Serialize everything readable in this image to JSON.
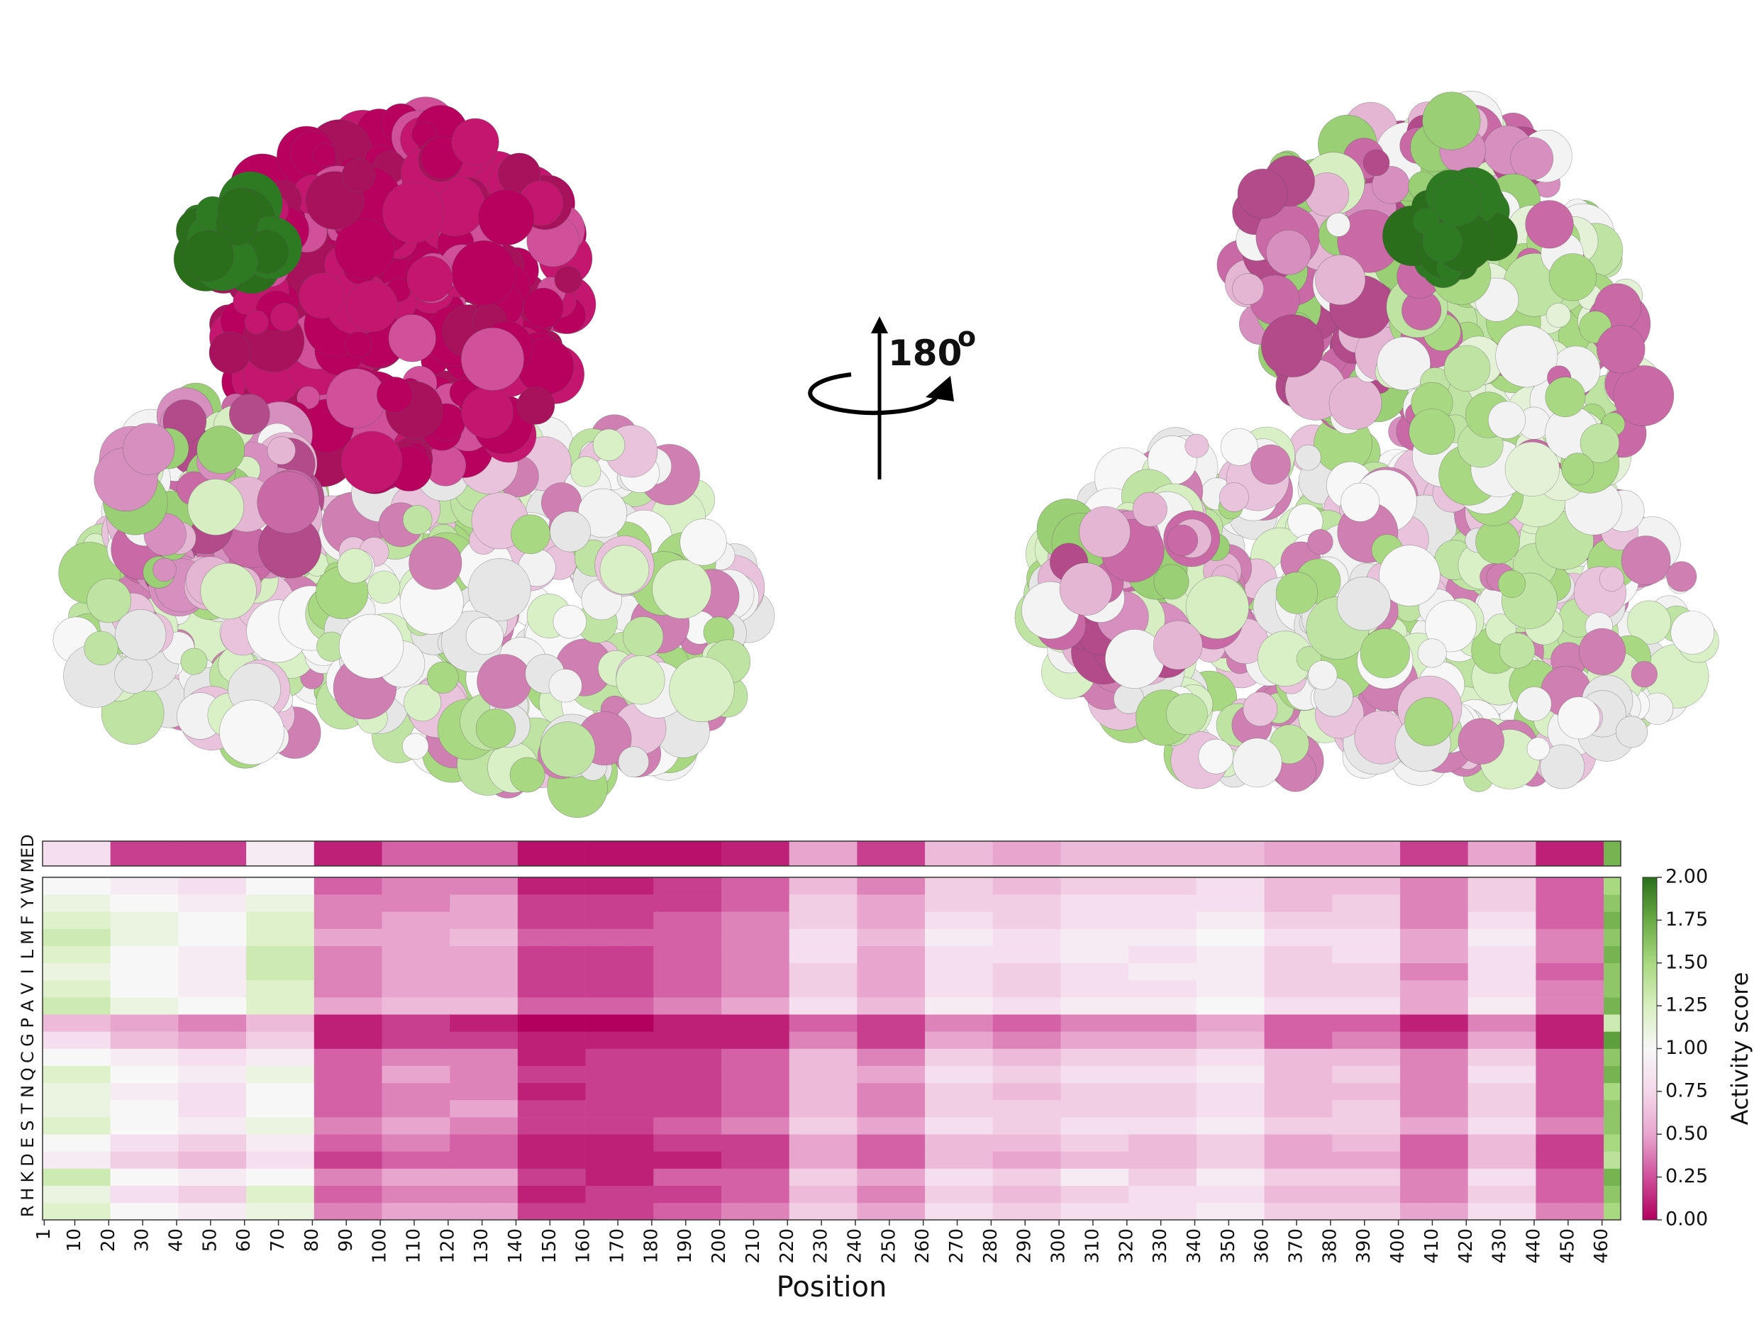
{
  "chart_data": {
    "type": "heatmap",
    "xlabel": "Position",
    "colorbar_label": "Activity score",
    "summary_label": "MED",
    "rows": [
      "R",
      "H",
      "K",
      "D",
      "E",
      "S",
      "T",
      "N",
      "Q",
      "C",
      "G",
      "P",
      "A",
      "V",
      "I",
      "L",
      "M",
      "F",
      "Y",
      "W"
    ],
    "x_bins": [
      0.5,
      20.5,
      40.5,
      60.5,
      80.5,
      100.5,
      120.5,
      140.5,
      160.5,
      180.5,
      200.5,
      220.5,
      240.5,
      260.5,
      280.5,
      300.5,
      320.5,
      340.5,
      360.5,
      380.5,
      400.5,
      420.5,
      440.5,
      460.5,
      465.5
    ],
    "summary_values": [
      0.8,
      0.2,
      0.2,
      0.9,
      0.1,
      0.3,
      0.3,
      0.05,
      0.05,
      0.05,
      0.1,
      0.5,
      0.2,
      0.6,
      0.5,
      0.6,
      0.6,
      0.6,
      0.5,
      0.5,
      0.2,
      0.5,
      0.1,
      1.7
    ],
    "values": [
      [
        1.2,
        1.0,
        0.9,
        1.1,
        0.4,
        0.5,
        0.5,
        0.2,
        0.2,
        0.3,
        0.4,
        0.7,
        0.5,
        0.8,
        0.7,
        0.8,
        0.8,
        0.9,
        0.7,
        0.7,
        0.5,
        0.8,
        0.4,
        1.5
      ],
      [
        1.1,
        0.8,
        0.7,
        1.2,
        0.3,
        0.4,
        0.4,
        0.1,
        0.2,
        0.2,
        0.3,
        0.6,
        0.4,
        0.7,
        0.6,
        0.7,
        0.8,
        0.8,
        0.6,
        0.6,
        0.4,
        0.7,
        0.3,
        1.6
      ],
      [
        1.3,
        1.0,
        0.9,
        1.0,
        0.4,
        0.5,
        0.5,
        0.2,
        0.1,
        0.3,
        0.3,
        0.7,
        0.5,
        0.8,
        0.7,
        0.9,
        0.7,
        0.9,
        0.7,
        0.7,
        0.4,
        0.8,
        0.3,
        1.7
      ],
      [
        0.9,
        0.7,
        0.6,
        0.8,
        0.2,
        0.3,
        0.3,
        0.1,
        0.1,
        0.1,
        0.2,
        0.5,
        0.3,
        0.6,
        0.5,
        0.6,
        0.6,
        0.7,
        0.5,
        0.5,
        0.3,
        0.6,
        0.2,
        1.4
      ],
      [
        1.0,
        0.8,
        0.7,
        0.9,
        0.3,
        0.4,
        0.3,
        0.1,
        0.1,
        0.2,
        0.2,
        0.5,
        0.3,
        0.6,
        0.6,
        0.7,
        0.6,
        0.7,
        0.5,
        0.6,
        0.3,
        0.6,
        0.2,
        1.5
      ],
      [
        1.2,
        1.0,
        0.9,
        1.1,
        0.4,
        0.5,
        0.4,
        0.2,
        0.2,
        0.3,
        0.4,
        0.7,
        0.5,
        0.8,
        0.7,
        0.8,
        0.8,
        0.9,
        0.7,
        0.7,
        0.5,
        0.8,
        0.4,
        1.6
      ],
      [
        1.1,
        1.0,
        0.8,
        1.0,
        0.3,
        0.4,
        0.5,
        0.2,
        0.2,
        0.2,
        0.3,
        0.6,
        0.4,
        0.7,
        0.7,
        0.7,
        0.7,
        0.8,
        0.6,
        0.7,
        0.4,
        0.7,
        0.3,
        1.6
      ],
      [
        1.1,
        0.9,
        0.8,
        1.0,
        0.3,
        0.4,
        0.4,
        0.1,
        0.2,
        0.2,
        0.3,
        0.6,
        0.4,
        0.7,
        0.6,
        0.7,
        0.7,
        0.8,
        0.6,
        0.6,
        0.4,
        0.7,
        0.3,
        1.5
      ],
      [
        1.2,
        1.0,
        0.9,
        1.1,
        0.3,
        0.5,
        0.4,
        0.2,
        0.2,
        0.2,
        0.3,
        0.6,
        0.5,
        0.8,
        0.7,
        0.8,
        0.8,
        0.9,
        0.6,
        0.7,
        0.4,
        0.8,
        0.3,
        1.7
      ],
      [
        1.0,
        0.9,
        0.8,
        0.9,
        0.3,
        0.4,
        0.4,
        0.1,
        0.2,
        0.2,
        0.3,
        0.6,
        0.4,
        0.7,
        0.6,
        0.7,
        0.7,
        0.8,
        0.6,
        0.6,
        0.4,
        0.7,
        0.3,
        1.6
      ],
      [
        0.8,
        0.6,
        0.5,
        0.7,
        0.1,
        0.2,
        0.2,
        0.1,
        0.1,
        0.1,
        0.1,
        0.4,
        0.2,
        0.5,
        0.4,
        0.5,
        0.5,
        0.6,
        0.3,
        0.4,
        0.2,
        0.5,
        0.1,
        1.8
      ],
      [
        0.6,
        0.5,
        0.4,
        0.6,
        0.1,
        0.2,
        0.1,
        0.0,
        0.0,
        0.1,
        0.1,
        0.3,
        0.2,
        0.4,
        0.3,
        0.4,
        0.4,
        0.5,
        0.3,
        0.3,
        0.1,
        0.4,
        0.1,
        1.3
      ],
      [
        1.3,
        1.1,
        1.0,
        1.2,
        0.5,
        0.6,
        0.6,
        0.3,
        0.3,
        0.4,
        0.5,
        0.8,
        0.6,
        0.9,
        0.8,
        0.9,
        0.9,
        1.0,
        0.8,
        0.8,
        0.5,
        0.9,
        0.4,
        1.7
      ],
      [
        1.2,
        1.0,
        0.9,
        1.2,
        0.4,
        0.5,
        0.5,
        0.2,
        0.2,
        0.3,
        0.4,
        0.7,
        0.5,
        0.8,
        0.7,
        0.8,
        0.8,
        0.9,
        0.7,
        0.7,
        0.5,
        0.8,
        0.4,
        1.6
      ],
      [
        1.1,
        1.0,
        0.9,
        1.3,
        0.4,
        0.5,
        0.5,
        0.2,
        0.2,
        0.3,
        0.4,
        0.7,
        0.5,
        0.8,
        0.7,
        0.8,
        0.9,
        0.9,
        0.7,
        0.7,
        0.4,
        0.8,
        0.3,
        1.6
      ],
      [
        1.2,
        1.0,
        0.9,
        1.3,
        0.4,
        0.5,
        0.5,
        0.2,
        0.2,
        0.3,
        0.4,
        0.8,
        0.5,
        0.8,
        0.8,
        0.9,
        0.8,
        0.9,
        0.7,
        0.8,
        0.5,
        0.8,
        0.4,
        1.7
      ],
      [
        1.3,
        1.1,
        1.0,
        1.2,
        0.5,
        0.5,
        0.6,
        0.3,
        0.3,
        0.3,
        0.4,
        0.8,
        0.6,
        0.9,
        0.8,
        0.9,
        0.9,
        1.0,
        0.8,
        0.8,
        0.5,
        0.9,
        0.4,
        1.6
      ],
      [
        1.2,
        1.1,
        1.0,
        1.2,
        0.4,
        0.5,
        0.5,
        0.2,
        0.2,
        0.3,
        0.4,
        0.7,
        0.5,
        0.8,
        0.7,
        0.8,
        0.8,
        0.9,
        0.7,
        0.7,
        0.4,
        0.8,
        0.3,
        1.7
      ],
      [
        1.1,
        1.0,
        0.9,
        1.1,
        0.4,
        0.4,
        0.5,
        0.2,
        0.2,
        0.2,
        0.3,
        0.7,
        0.5,
        0.7,
        0.7,
        0.8,
        0.8,
        0.8,
        0.6,
        0.7,
        0.4,
        0.7,
        0.3,
        1.6
      ],
      [
        1.0,
        0.9,
        0.8,
        1.0,
        0.3,
        0.4,
        0.4,
        0.1,
        0.1,
        0.2,
        0.3,
        0.6,
        0.4,
        0.7,
        0.6,
        0.7,
        0.7,
        0.8,
        0.6,
        0.6,
        0.4,
        0.7,
        0.3,
        1.5
      ]
    ],
    "xlim": [
      0.5,
      465.5
    ],
    "xticks": [
      1,
      10,
      20,
      30,
      40,
      50,
      60,
      70,
      80,
      90,
      100,
      110,
      120,
      130,
      140,
      150,
      160,
      170,
      180,
      190,
      200,
      210,
      220,
      230,
      240,
      250,
      260,
      270,
      280,
      290,
      300,
      310,
      320,
      330,
      340,
      350,
      360,
      370,
      380,
      390,
      400,
      410,
      420,
      430,
      440,
      450,
      460
    ],
    "clim": [
      0,
      2
    ],
    "cticks": [
      {
        "value": 0,
        "label": "0.00"
      },
      {
        "value": 0.25,
        "label": "0.25"
      },
      {
        "value": 0.5,
        "label": "0.50"
      },
      {
        "value": 0.75,
        "label": "0.75"
      },
      {
        "value": 1,
        "label": "1.00"
      },
      {
        "value": 1.25,
        "label": "1.25"
      },
      {
        "value": 1.5,
        "label": "1.50"
      },
      {
        "value": 1.75,
        "label": "1.75"
      },
      {
        "value": 2,
        "label": "2.00"
      }
    ],
    "colormap": [
      "#b3005f",
      "#cf4f9b",
      "#e8a6cf",
      "#f5d8ea",
      "#f7f7f7",
      "#d8efc0",
      "#a8d880",
      "#6aab45",
      "#2a6e1b"
    ]
  },
  "figure": {
    "rotation_label": "180",
    "rotation_unit": "o"
  }
}
